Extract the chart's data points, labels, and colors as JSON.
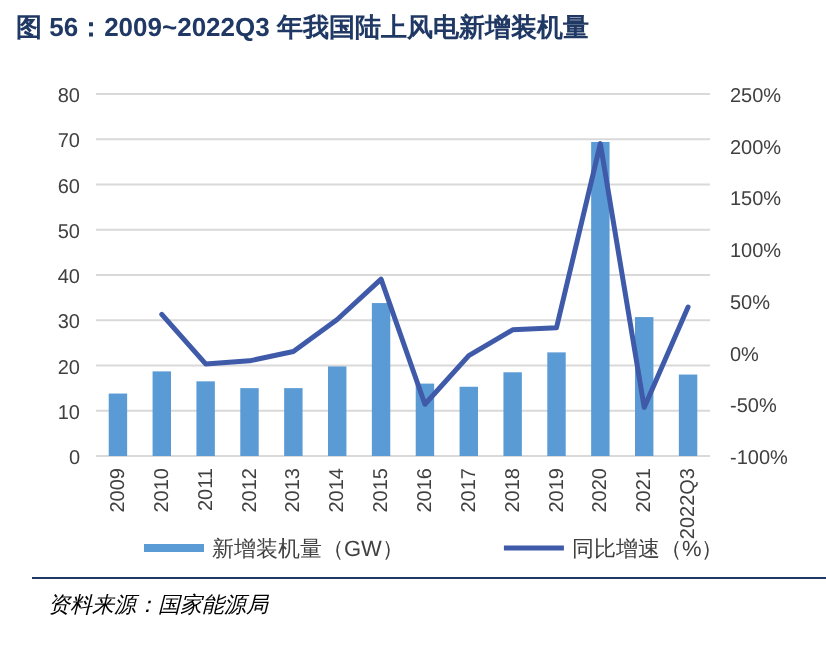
{
  "chart_data": {
    "type": "bar",
    "title": "图 56：2009~2022Q3 年我国陆上风电新增装机量",
    "categories": [
      "2009",
      "2010",
      "2011",
      "2012",
      "2013",
      "2014",
      "2015",
      "2016",
      "2017",
      "2018",
      "2019",
      "2020",
      "2021",
      "2022Q3"
    ],
    "series": [
      {
        "name": "新增装机量（GW）",
        "color": "#5b9bd5",
        "values": [
          13.8,
          18.7,
          16.5,
          15,
          15,
          19.8,
          33.8,
          16,
          15.3,
          18.5,
          22.9,
          69.4,
          30.7,
          18.0
        ]
      },
      {
        "name": "同比增速（%）",
        "type": "line",
        "axis": "y2",
        "color": "#3f5aa8",
        "values": [
          null,
          37,
          -11,
          -8,
          1,
          32,
          71,
          -50,
          -3,
          22,
          24,
          202,
          -53,
          44
        ]
      }
    ],
    "ylim": [
      0,
      80
    ],
    "yticks": [
      0,
      10,
      20,
      30,
      40,
      50,
      60,
      70,
      80
    ],
    "y2lim": [
      -100,
      250
    ],
    "y2ticks": [
      {
        "value": -100,
        "label": "-100%"
      },
      {
        "value": -50,
        "label": "-50%"
      },
      {
        "value": 0,
        "label": "0%"
      },
      {
        "value": 50,
        "label": "50%"
      },
      {
        "value": 100,
        "label": "100%"
      },
      {
        "value": 150,
        "label": "150%"
      },
      {
        "value": 200,
        "label": "200%"
      },
      {
        "value": 250,
        "label": "250%"
      }
    ],
    "grid": "y",
    "legend": "bottom",
    "marker": "none",
    "line_style": "solid",
    "annotations": [
      "资料来源：国家能源局"
    ]
  }
}
